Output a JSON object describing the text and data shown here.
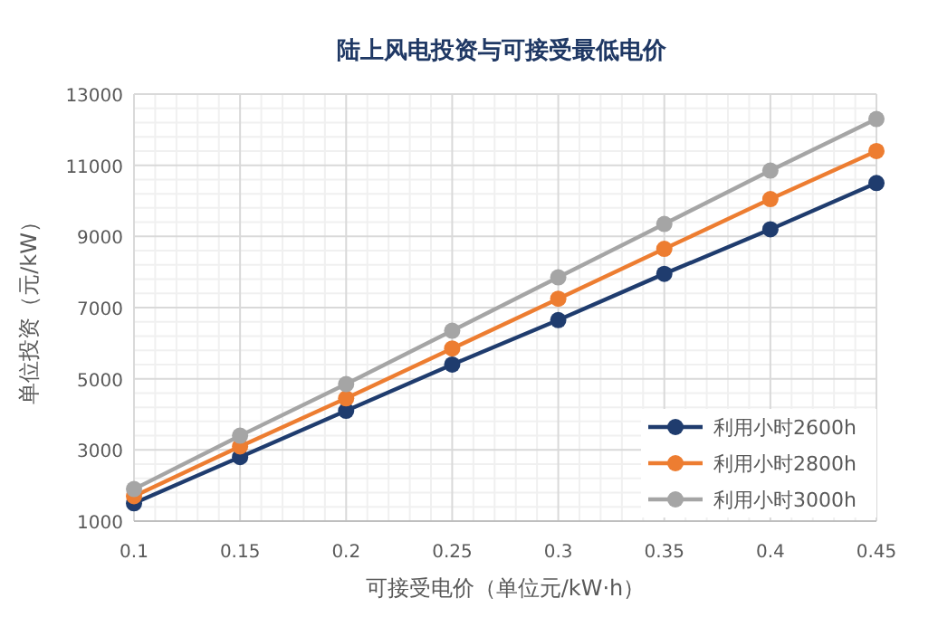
{
  "chart_data": {
    "type": "line",
    "title": "陆上风电投资与可接受最低电价",
    "xlabel": "可接受电价（单位元/kW·h）",
    "ylabel": "单位投资（元/kW）",
    "x": [
      0.1,
      0.15,
      0.2,
      0.25,
      0.3,
      0.35,
      0.4,
      0.45
    ],
    "xlim": [
      0.1,
      0.45
    ],
    "xticks": [
      0.1,
      0.15,
      0.2,
      0.25,
      0.3,
      0.35,
      0.4,
      0.45
    ],
    "ylim": [
      1000,
      13000
    ],
    "yticks": [
      1000,
      3000,
      5000,
      7000,
      9000,
      11000,
      13000
    ],
    "grid": true,
    "legend": "bottom right",
    "marker": "circle",
    "line_style": "solid",
    "series": [
      {
        "name": "利用小时2600h",
        "color": "#1f3c6e",
        "values": [
          1500,
          2800,
          4100,
          5400,
          6650,
          7950,
          9200,
          10500
        ]
      },
      {
        "name": "利用小时2800h",
        "color": "#ed7d31",
        "values": [
          1700,
          3100,
          4450,
          5850,
          7250,
          8650,
          10050,
          11400
        ]
      },
      {
        "name": "利用小时3000h",
        "color": "#a5a5a5",
        "values": [
          1900,
          3400,
          4850,
          6350,
          7850,
          9350,
          10850,
          12300
        ]
      }
    ]
  }
}
